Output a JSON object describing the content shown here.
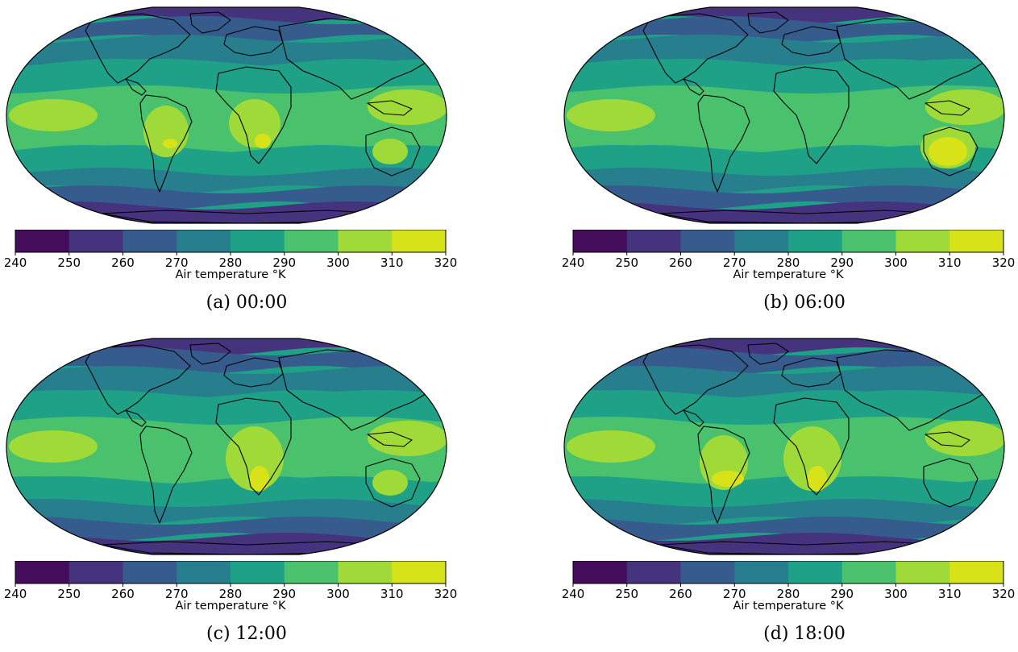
{
  "colorbar": {
    "ticks": [
      "240",
      "250",
      "260",
      "270",
      "280",
      "290",
      "300",
      "310",
      "320"
    ],
    "label": "Air temperature °K",
    "colors": [
      "#440d5b",
      "#46337e",
      "#365c8d",
      "#277f8e",
      "#1fa187",
      "#4ac16d",
      "#a0da39",
      "#d8e219"
    ]
  },
  "panels": [
    {
      "caption": "(a) 00:00",
      "hotspots": "africa-center,south-america-small,australia-medium"
    },
    {
      "caption": "(b) 06:00",
      "hotspots": "australia-large"
    },
    {
      "caption": "(c) 12:00",
      "hotspots": "southern-africa,australia-medium"
    },
    {
      "caption": "(d) 18:00",
      "hotspots": "south-america,southern-africa"
    }
  ],
  "chart_data": {
    "type": "heatmap",
    "variable": "Air temperature",
    "unit": "°K",
    "range": [
      240,
      320
    ],
    "levels": [
      240,
      250,
      260,
      270,
      280,
      290,
      300,
      310,
      320
    ],
    "projection": "Robinson (global)",
    "panels": [
      "(a) 00:00",
      "(b) 06:00",
      "(c) 12:00",
      "(d) 18:00"
    ]
  }
}
